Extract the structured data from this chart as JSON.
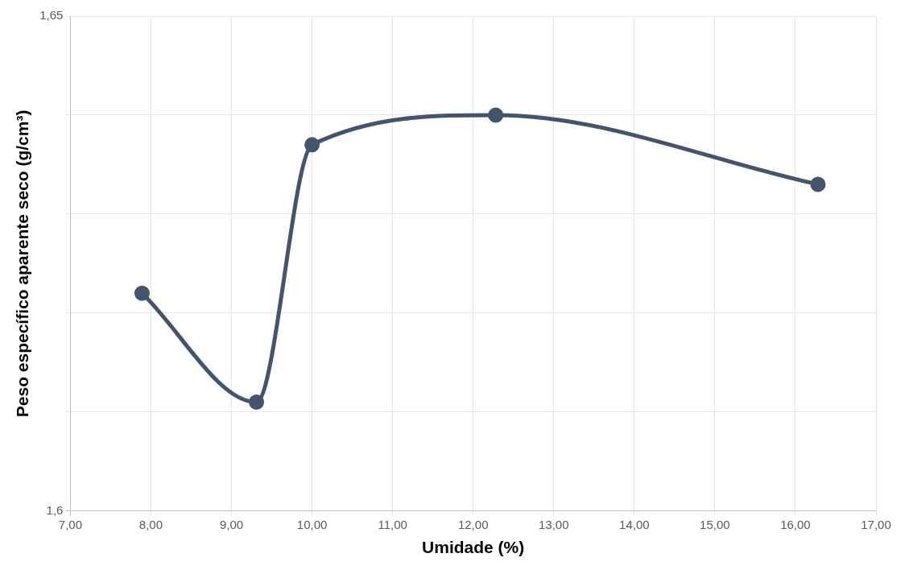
{
  "chart_data": {
    "type": "line",
    "xlabel": "Umidade (%)",
    "ylabel": "Peso específico aparente seco (g/cm³)",
    "x": [
      7.89,
      9.31,
      10.0,
      12.28,
      16.28
    ],
    "series": [
      {
        "color": "#44546a",
        "values": [
          1.622,
          1.611,
          1.637,
          1.64,
          1.633
        ]
      }
    ],
    "xlim": [
      7,
      17
    ],
    "ylim": [
      1.6,
      1.65
    ],
    "xticks": [
      {
        "value": 7,
        "label": "7,00"
      },
      {
        "value": 8,
        "label": "8,00"
      },
      {
        "value": 9,
        "label": "9,00"
      },
      {
        "value": 10,
        "label": "10,00"
      },
      {
        "value": 11,
        "label": "11,00"
      },
      {
        "value": 12,
        "label": "12,00"
      },
      {
        "value": 13,
        "label": "13,00"
      },
      {
        "value": 14,
        "label": "14,00"
      },
      {
        "value": 15,
        "label": "15,00"
      },
      {
        "value": 16,
        "label": "16,00"
      },
      {
        "value": 17,
        "label": "17,00"
      }
    ],
    "yticks": [
      {
        "value": 1.6,
        "label": "1,6"
      },
      {
        "value": 1.61,
        "label": null
      },
      {
        "value": 1.62,
        "label": null
      },
      {
        "value": 1.63,
        "label": null
      },
      {
        "value": 1.64,
        "label": null
      },
      {
        "value": 1.65,
        "label": "1,65"
      }
    ],
    "grid": true,
    "marker": "circle",
    "line_style": "solid"
  }
}
